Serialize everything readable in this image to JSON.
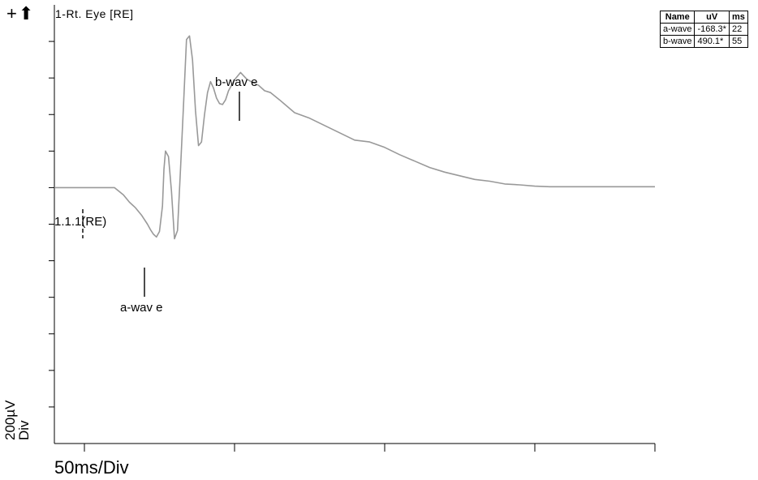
{
  "toolbar": {
    "add_icon": "plus-icon",
    "up_icon": "up-arrow-icon"
  },
  "channel_title": "1-Rt. Eye [RE]",
  "x_scale_label": "50ms/Div",
  "y_scale_label": {
    "line1": "200µV",
    "line2": "Div"
  },
  "baseline_label": "1.1.1(RE)",
  "markers": {
    "a_wave": "a-wav e",
    "b_wave": "b-wav e"
  },
  "results_table": {
    "headers": [
      "Name",
      "uV",
      "ms"
    ],
    "rows": [
      [
        "a-wave",
        "-168.3*",
        "22"
      ],
      [
        "b-wave",
        "490.1*",
        "55"
      ]
    ]
  },
  "chart_data": {
    "type": "line",
    "title": "1-Rt. Eye [RE]",
    "xlabel": "50ms/Div",
    "ylabel": "200µV Div",
    "xlim": [
      -10,
      190
    ],
    "ylim": [
      -1400,
      1000
    ],
    "series": [
      {
        "color": "#999999",
        "x": [
          -10,
          -5,
          0,
          5,
          10,
          13,
          15,
          17,
          19,
          21,
          22,
          23,
          24,
          25,
          26,
          26.5,
          27,
          28,
          29,
          30,
          31,
          32,
          33,
          34,
          35,
          36,
          37,
          38,
          39,
          40,
          41,
          42,
          43,
          44,
          45,
          46,
          47,
          48,
          49,
          50,
          52,
          54,
          56,
          58,
          60,
          62,
          65,
          70,
          75,
          80,
          85,
          90,
          95,
          100,
          105,
          110,
          115,
          120,
          125,
          130,
          135,
          140,
          145,
          150,
          155,
          160,
          165,
          170,
          175,
          180,
          185,
          190
        ],
        "y": [
          0,
          0,
          0,
          0,
          0,
          -40,
          -80,
          -110,
          -150,
          -200,
          -230,
          -255,
          -270,
          -240,
          -100,
          100,
          200,
          170,
          -20,
          -280,
          -235,
          100,
          450,
          810,
          830,
          700,
          420,
          230,
          250,
          400,
          520,
          580,
          545,
          490,
          460,
          455,
          480,
          530,
          560,
          590,
          630,
          595,
          575,
          560,
          530,
          520,
          480,
          410,
          380,
          340,
          300,
          260,
          250,
          220,
          180,
          145,
          110,
          85,
          65,
          45,
          35,
          20,
          15,
          8,
          5,
          5,
          5,
          5,
          5,
          5,
          5,
          5
        ]
      }
    ],
    "annotations": [
      {
        "label": "a-wav e",
        "x": 22,
        "y": -168.3
      },
      {
        "label": "b-wav e",
        "x": 55,
        "y": 490.1
      },
      {
        "label": "1.1.1(RE)",
        "x": 0,
        "y": 0
      }
    ]
  }
}
